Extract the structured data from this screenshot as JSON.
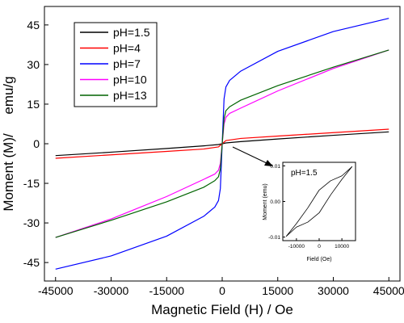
{
  "chart_data": [
    {
      "type": "line",
      "title": "",
      "xlabel": "Magnetic Field  (H)  / Oe",
      "ylabel_parts": [
        "Moment (M)/",
        "emu/g"
      ],
      "xlim": [
        -48000,
        48000
      ],
      "ylim": [
        -52,
        52
      ],
      "x_ticks": [
        -45000,
        -30000,
        -15000,
        0,
        15000,
        30000,
        45000
      ],
      "y_ticks": [
        -45,
        -30,
        -15,
        0,
        15,
        30,
        45
      ],
      "grid": false,
      "legend": "top-left",
      "series": [
        {
          "name": "pH=1.5",
          "color": "#000000",
          "x": [
            -45000,
            -30000,
            -15000,
            -5000,
            -1000,
            0,
            1000,
            5000,
            15000,
            30000,
            45000
          ],
          "y": [
            -4.5,
            -3.2,
            -1.8,
            -0.8,
            -0.3,
            0,
            0.3,
            0.8,
            1.8,
            3.2,
            4.5
          ]
        },
        {
          "name": "pH=4",
          "color": "#ff0000",
          "x": [
            -45000,
            -30000,
            -15000,
            -5000,
            -1000,
            0,
            1000,
            5000,
            15000,
            30000,
            45000
          ],
          "y": [
            -5.5,
            -4.2,
            -2.9,
            -2.0,
            -1.2,
            0,
            1.2,
            2.0,
            2.9,
            4.2,
            5.5
          ]
        },
        {
          "name": "pH=7",
          "color": "#0000ff",
          "x": [
            -45000,
            -30000,
            -15000,
            -5000,
            -2000,
            -1000,
            -500,
            0,
            500,
            1000,
            2000,
            5000,
            15000,
            30000,
            45000
          ],
          "y": [
            -47.5,
            -42.5,
            -35,
            -27.5,
            -24,
            -21.5,
            -17,
            0,
            17,
            21.5,
            24,
            27.5,
            35,
            42.5,
            47.5
          ]
        },
        {
          "name": "pH=10",
          "color": "#ff00ff",
          "x": [
            -45000,
            -30000,
            -15000,
            -5000,
            -2000,
            -1000,
            -500,
            0,
            500,
            1000,
            2000,
            5000,
            15000,
            30000,
            45000
          ],
          "y": [
            -35.5,
            -28.5,
            -20,
            -13.5,
            -11.5,
            -10,
            -7.5,
            0,
            7.5,
            10,
            11.5,
            13.5,
            20,
            28.5,
            35.5
          ]
        },
        {
          "name": "pH=13",
          "color": "#006400",
          "x": [
            -45000,
            -30000,
            -15000,
            -5000,
            -2000,
            -1000,
            -500,
            0,
            500,
            1000,
            2000,
            5000,
            15000,
            30000,
            45000
          ],
          "y": [
            -35.5,
            -29,
            -22,
            -16.5,
            -14,
            -12.5,
            -9.5,
            0,
            9.5,
            12.5,
            14,
            16.5,
            22,
            29,
            35.5
          ]
        }
      ]
    },
    {
      "type": "line",
      "title": "",
      "annotation": "pH=1.5",
      "xlabel": "Field (Oe)",
      "ylabel": "Moment (emu)",
      "xlim": [
        -16000,
        16000
      ],
      "ylim": [
        -0.011,
        0.011
      ],
      "x_ticks": [
        -10000,
        0,
        10000
      ],
      "y_tick_values": [
        -0.01,
        0.0,
        0.01
      ],
      "y_tick_labels": [
        "-0.01",
        "0.00",
        "0.01"
      ],
      "series": [
        {
          "name": "",
          "color": "#000000",
          "x": [
            -14500,
            -10000,
            -5000,
            0,
            5000,
            10000,
            14500
          ],
          "y": [
            -0.0098,
            -0.0062,
            -0.0018,
            0.0032,
            0.0058,
            0.0072,
            0.0098
          ]
        },
        {
          "name": "",
          "color": "#000000",
          "x": [
            14500,
            10000,
            5000,
            0,
            -5000,
            -10000,
            -14500
          ],
          "y": [
            0.0098,
            0.0062,
            0.0018,
            -0.0032,
            -0.0058,
            -0.0072,
            -0.0098
          ]
        }
      ]
    }
  ]
}
